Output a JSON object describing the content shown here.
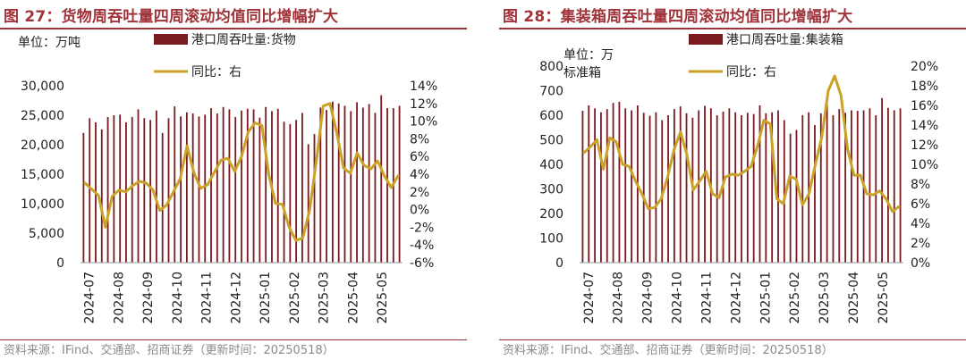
{
  "charts": [
    {
      "title": "图 27：货物周吞吐量四周滚动均值同比增幅扩大",
      "unit_label": "单位：万吨",
      "source": "资料来源：IFind、交通部、招商证券（更新时间：20250518）",
      "legend": {
        "bar": "港口周吞吐量:货物",
        "line": "同比：右"
      },
      "colors": {
        "bar": "#7a1a1f",
        "line": "#c9a227",
        "accent": "#a0343a"
      }
    },
    {
      "title": "图 28：集装箱周吞吐量四周滚动均值同比增幅扩大",
      "unit_label": "单位：万\n标准箱",
      "source": "资料来源：IFind、交通部、招商证券（更新时间：20250518）",
      "legend": {
        "bar": "港口周吞吐量:集装箱",
        "line": "同比：右"
      },
      "colors": {
        "bar": "#7a1a1f",
        "line": "#c9a227",
        "accent": "#a0343a"
      }
    }
  ],
  "chart_data": [
    {
      "type": "bar",
      "title": "图 27：货物周吞吐量四周滚动均值同比增幅扩大",
      "y_left": {
        "label": "单位：万吨",
        "range": [
          0,
          30000
        ],
        "ticks": [
          "0",
          "5,000",
          "10,000",
          "15,000",
          "20,000",
          "25,000",
          "30,000"
        ]
      },
      "y_right": {
        "range": [
          -6,
          14
        ],
        "ticks": [
          "-6%",
          "-4%",
          "-2%",
          "0%",
          "2%",
          "4%",
          "6%",
          "8%",
          "10%",
          "12%",
          "14%"
        ]
      },
      "x_ticks": [
        "2024-07",
        "2024-08",
        "2024-09",
        "2024-10",
        "2024-11",
        "2024-12",
        "2025-01",
        "2025-02",
        "2025-03",
        "2025-04",
        "2025-05"
      ],
      "series": [
        {
          "name": "港口周吞吐量:货物",
          "type": "bar",
          "axis": "left",
          "values": [
            22000,
            24500,
            23800,
            22600,
            24700,
            25000,
            25100,
            23800,
            24700,
            26000,
            24500,
            24200,
            25800,
            22000,
            24500,
            26500,
            24800,
            25500,
            25300,
            24800,
            25100,
            26200,
            25300,
            26400,
            26000,
            24700,
            25800,
            26100,
            26000,
            24600,
            26400,
            25700,
            26100,
            23900,
            23500,
            24200,
            25400,
            20100,
            21800,
            26300,
            25900,
            27300,
            27000,
            26600,
            25700,
            27200,
            26300,
            26900,
            25400,
            28400,
            26200,
            26200,
            26600
          ]
        },
        {
          "name": "同比：右",
          "type": "line",
          "axis": "right",
          "values": [
            3.0,
            2.3,
            1.6,
            -2.0,
            1.5,
            2.2,
            2.0,
            2.7,
            3.2,
            3.0,
            2.2,
            -0.1,
            0.5,
            2.0,
            3.5,
            7.2,
            4.2,
            2.4,
            2.8,
            4.2,
            5.6,
            5.8,
            4.3,
            6.0,
            8.8,
            9.8,
            9.5,
            4.0,
            0.7,
            0.6,
            -2.0,
            -3.5,
            -3.2,
            -0.1,
            5.5,
            11.7,
            12.0,
            8.7,
            4.7,
            4.1,
            6.4,
            5.0,
            4.6,
            5.5,
            3.8,
            2.5,
            3.8
          ]
        }
      ]
    },
    {
      "type": "bar",
      "title": "图 28：集装箱周吞吐量四周滚动均值同比增幅扩大",
      "y_left": {
        "label": "单位：万标准箱",
        "range": [
          0,
          800
        ],
        "ticks": [
          "0",
          "100",
          "200",
          "300",
          "400",
          "500",
          "600",
          "700",
          "800"
        ]
      },
      "y_right": {
        "range": [
          0,
          20
        ],
        "ticks": [
          "0%",
          "2%",
          "4%",
          "6%",
          "8%",
          "10%",
          "12%",
          "14%",
          "16%",
          "18%",
          "20%"
        ]
      },
      "x_ticks": [
        "2024-07",
        "2024-08",
        "2024-09",
        "2024-10",
        "2024-11",
        "2024-12",
        "2025-01",
        "2025-02",
        "2025-03",
        "2025-04",
        "2025-05"
      ],
      "series": [
        {
          "name": "港口周吞吐量:集装箱",
          "type": "bar",
          "axis": "left",
          "values": [
            618,
            640,
            628,
            612,
            625,
            650,
            655,
            628,
            620,
            640,
            610,
            598,
            612,
            580,
            600,
            625,
            636,
            608,
            590,
            620,
            638,
            628,
            600,
            615,
            628,
            612,
            600,
            610,
            605,
            640,
            608,
            612,
            620,
            580,
            525,
            540,
            600,
            612,
            560,
            608,
            652,
            600,
            625,
            610,
            620,
            618,
            620,
            628,
            600,
            670,
            630,
            620,
            628
          ]
        },
        {
          "name": "同比：右",
          "type": "line",
          "axis": "right",
          "values": [
            11.2,
            11.8,
            12.5,
            9.5,
            12.7,
            12.3,
            10.0,
            9.8,
            8.3,
            7.0,
            5.5,
            5.6,
            6.5,
            8.7,
            11.5,
            13.3,
            11.0,
            7.4,
            8.3,
            9.3,
            7.0,
            6.6,
            8.7,
            9.0,
            8.9,
            9.3,
            9.8,
            11.9,
            14.5,
            14.1,
            6.5,
            6.0,
            8.8,
            8.5,
            5.9,
            7.0,
            10.0,
            12.8,
            17.5,
            19.0,
            17.0,
            11.6,
            8.9,
            8.9,
            7.0,
            6.9,
            7.3,
            6.5,
            5.2,
            5.7
          ]
        }
      ]
    }
  ]
}
